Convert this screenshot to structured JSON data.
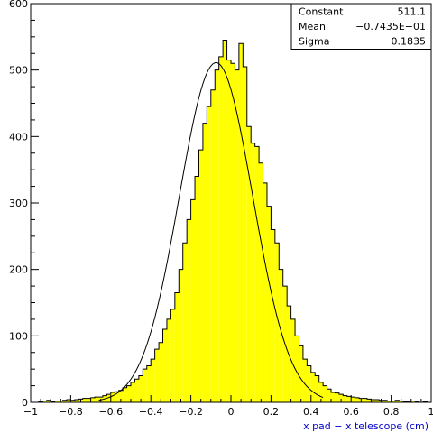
{
  "chart_data": {
    "type": "bar",
    "histogram": true,
    "title": "",
    "xlabel": "x pad − x telescope (cm)",
    "ylabel": "",
    "xlim": [
      -1,
      1
    ],
    "ylim": [
      0,
      600
    ],
    "x_ticks": [
      -1,
      -0.8,
      -0.6,
      -0.4,
      -0.2,
      0,
      0.2,
      0.4,
      0.6,
      0.8,
      1
    ],
    "x_tick_labels": [
      "−1",
      "−0.8",
      "−0.6",
      "−0.4",
      "−0.2",
      "0",
      "0.2",
      "0.4",
      "0.6",
      "0.8",
      "1"
    ],
    "y_ticks": [
      0,
      100,
      200,
      300,
      400,
      500,
      600
    ],
    "y_tick_labels": [
      "0",
      "100",
      "200",
      "300",
      "400",
      "500",
      "600"
    ],
    "bin_start": -1,
    "bin_width": 0.02,
    "bin_values": [
      0,
      0,
      1,
      2,
      3,
      1,
      2,
      2,
      3,
      4,
      3,
      4,
      5,
      6,
      6,
      7,
      8,
      8,
      10,
      12,
      15,
      16,
      18,
      22,
      25,
      30,
      35,
      40,
      50,
      55,
      65,
      80,
      90,
      110,
      125,
      140,
      165,
      200,
      240,
      275,
      305,
      340,
      380,
      420,
      445,
      470,
      500,
      520,
      545,
      515,
      510,
      500,
      540,
      505,
      415,
      390,
      385,
      360,
      330,
      295,
      260,
      240,
      200,
      175,
      145,
      125,
      100,
      85,
      65,
      55,
      45,
      40,
      30,
      25,
      20,
      15,
      14,
      12,
      10,
      9,
      8,
      7,
      6,
      6,
      5,
      4,
      4,
      3,
      3,
      2,
      2,
      3,
      2,
      1,
      1,
      2,
      1,
      0,
      1,
      0
    ],
    "fit": {
      "function": "gaussian",
      "constant": 511.1,
      "mean": -0.07435,
      "sigma": 0.1835,
      "color": "#000000"
    },
    "fill_color": "#ffff00",
    "stats_box": {
      "placement": "top-right",
      "rows": [
        {
          "label": "Constant",
          "value": "511.1"
        },
        {
          "label": "Mean",
          "value": "−0.7435E−01"
        },
        {
          "label": "Sigma",
          "value": "0.1835"
        }
      ]
    }
  }
}
